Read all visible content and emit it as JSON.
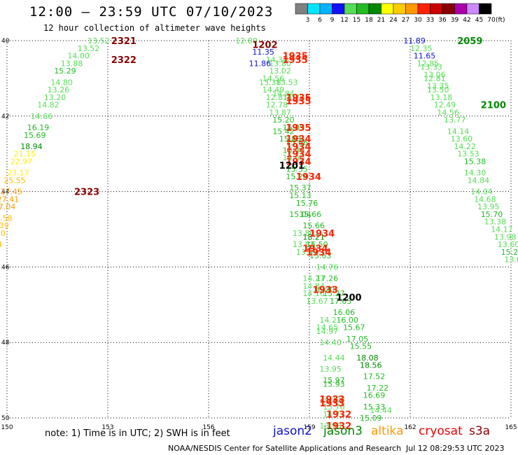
{
  "header": {
    "title": "12:00 – 23:59 UTC 07/10/2023",
    "subtitle": "12 hour collection of altimeter wave heights"
  },
  "colorbar": {
    "unit": "(ft)",
    "labels": [
      "3",
      "6",
      "9",
      "12",
      "15",
      "18",
      "21",
      "24",
      "27",
      "30",
      "33",
      "36",
      "39",
      "42",
      "45",
      "70"
    ],
    "colors": [
      "#808080",
      "#00e5ff",
      "#00b4ff",
      "#1010ff",
      "#55dd55",
      "#22bb22",
      "#008800",
      "#ffff00",
      "#ffcc00",
      "#ff9900",
      "#ff2200",
      "#cc0000",
      "#880000",
      "#aa00aa",
      "#cc88ff",
      "#000000"
    ]
  },
  "chart_data": {
    "type": "scatter",
    "xaxis": {
      "ticks": [
        150,
        153,
        156,
        159,
        162,
        165
      ],
      "range": [
        150,
        165
      ]
    },
    "yaxis": {
      "ticks": [
        40,
        42,
        44,
        46,
        48,
        50
      ],
      "range": [
        40,
        50
      ],
      "label_suffix": ""
    },
    "series": [
      {
        "pass": "2321",
        "points": [
          [
            152.4,
            40.0,
            13.52
          ],
          [
            152.1,
            40.2,
            13.52
          ],
          [
            151.8,
            40.4,
            14.0
          ],
          [
            151.6,
            40.6,
            13.88
          ],
          [
            151.4,
            40.8,
            15.29
          ],
          [
            151.3,
            41.1,
            14.8
          ],
          [
            151.2,
            41.3,
            13.26
          ],
          [
            151.1,
            41.5,
            13.2
          ],
          [
            150.9,
            41.7,
            14.82
          ],
          [
            150.7,
            42.0,
            14.66
          ],
          [
            150.6,
            42.3,
            16.19
          ],
          [
            150.5,
            42.5,
            15.69
          ],
          [
            150.4,
            42.8,
            18.94
          ],
          [
            150.2,
            43.0,
            21.15
          ],
          [
            150.1,
            43.2,
            22.97
          ],
          [
            150.0,
            43.5,
            23.17
          ],
          [
            149.9,
            43.7,
            25.55
          ],
          [
            149.8,
            44.0,
            27.45
          ],
          [
            149.7,
            44.2,
            27.41
          ],
          [
            149.6,
            44.4,
            27.04
          ],
          [
            149.5,
            44.7,
            25.58
          ],
          [
            149.4,
            44.9,
            26.39
          ],
          [
            149.3,
            45.1,
            25.1
          ],
          [
            149.2,
            45.4,
            24.24
          ],
          [
            149.1,
            45.6,
            24.57
          ],
          [
            149.0,
            45.8,
            23.03
          ],
          [
            148.9,
            46.0,
            21.96
          ],
          [
            148.8,
            46.3,
            21.34
          ]
        ]
      },
      {
        "pass": "1202",
        "points": [
          [
            156.8,
            40.0,
            12.8
          ],
          [
            157.3,
            40.3,
            11.35
          ],
          [
            157.7,
            40.5,
            14.34
          ],
          [
            157.8,
            40.6,
            13.8
          ],
          [
            157.2,
            40.6,
            11.86
          ],
          [
            157.8,
            40.8,
            13.02
          ],
          [
            157.6,
            41.0,
            14.56
          ],
          [
            157.5,
            41.1,
            13.38
          ],
          [
            158.0,
            41.1,
            13.53
          ],
          [
            157.6,
            41.3,
            14.49
          ],
          [
            157.9,
            41.4,
            14.84
          ],
          [
            157.7,
            41.5,
            12.81
          ],
          [
            158.2,
            41.5,
            14.72
          ],
          [
            157.7,
            41.7,
            12.78
          ],
          [
            157.8,
            41.9,
            13.87
          ],
          [
            157.9,
            42.1,
            15.2
          ],
          [
            158.2,
            42.3,
            15.09
          ],
          [
            157.9,
            42.4,
            15.42
          ],
          [
            158.1,
            42.6,
            15.88
          ],
          [
            158.3,
            42.7,
            15.66
          ],
          [
            158.2,
            42.9,
            15.4
          ],
          [
            158.2,
            43.1,
            14.6
          ],
          [
            158.3,
            43.4,
            15.35
          ],
          [
            158.3,
            43.6,
            15.24
          ],
          [
            158.4,
            43.9,
            15.37
          ],
          [
            158.4,
            44.1,
            15.13
          ],
          [
            158.6,
            44.3,
            15.76
          ],
          [
            158.4,
            44.6,
            15.04
          ],
          [
            158.7,
            44.6,
            15.66
          ],
          [
            158.8,
            44.9,
            15.66
          ],
          [
            158.5,
            45.1,
            13.8
          ],
          [
            158.8,
            45.2,
            18.21
          ],
          [
            158.5,
            45.4,
            13.53
          ],
          [
            158.9,
            45.4,
            15.5
          ],
          [
            158.6,
            45.6,
            13.97
          ],
          [
            159.0,
            45.7,
            15.63
          ],
          [
            159.2,
            46.0,
            14.76
          ],
          [
            158.8,
            46.3,
            14.27
          ],
          [
            159.2,
            46.3,
            17.26
          ],
          [
            158.8,
            46.5,
            14.84
          ],
          [
            159.1,
            46.6,
            16.2
          ],
          [
            158.8,
            46.7,
            14.16
          ],
          [
            159.4,
            46.7,
            15.27
          ],
          [
            158.9,
            46.9,
            13.67
          ],
          [
            159.6,
            46.9,
            17.63
          ],
          [
            159.7,
            47.2,
            16.06
          ],
          [
            159.8,
            47.4,
            16.0
          ],
          [
            160.0,
            47.6,
            15.67
          ],
          [
            159.3,
            47.4,
            14.21
          ],
          [
            159.2,
            47.6,
            14.65
          ],
          [
            159.2,
            47.7,
            14.97
          ],
          [
            160.1,
            47.9,
            17.05
          ],
          [
            159.3,
            48.0,
            14.4
          ],
          [
            160.2,
            48.1,
            15.55
          ],
          [
            160.4,
            48.4,
            18.08
          ],
          [
            159.4,
            48.4,
            14.44
          ],
          [
            160.5,
            48.6,
            18.56
          ],
          [
            159.3,
            48.7,
            13.95
          ],
          [
            160.6,
            48.9,
            17.52
          ],
          [
            159.4,
            49.0,
            15.97
          ],
          [
            159.4,
            49.1,
            15.93
          ],
          [
            160.7,
            49.2,
            17.22
          ],
          [
            160.6,
            49.4,
            16.69
          ],
          [
            159.3,
            49.5,
            14.11
          ],
          [
            159.4,
            49.7,
            13.7
          ],
          [
            160.6,
            49.7,
            15.33
          ],
          [
            160.8,
            49.8,
            14.44
          ],
          [
            159.4,
            49.9,
            14.77
          ],
          [
            160.5,
            50.0,
            15.09
          ],
          [
            159.3,
            50.2,
            13.93
          ]
        ]
      },
      {
        "pass": "2059",
        "points": [
          [
            161.8,
            40.0,
            11.89
          ],
          [
            162.0,
            40.2,
            12.35
          ],
          [
            162.1,
            40.4,
            11.65
          ],
          [
            162.2,
            40.6,
            12.85
          ],
          [
            162.3,
            40.7,
            13.33
          ],
          [
            162.4,
            40.9,
            13.06
          ],
          [
            162.4,
            41.0,
            12.81
          ],
          [
            162.5,
            41.2,
            13.35
          ],
          [
            162.5,
            41.3,
            13.5
          ],
          [
            162.6,
            41.5,
            13.18
          ],
          [
            162.7,
            41.7,
            12.49
          ],
          [
            162.8,
            41.9,
            14.56
          ],
          [
            163.0,
            42.1,
            13.77
          ],
          [
            163.1,
            42.4,
            14.14
          ],
          [
            163.2,
            42.6,
            13.6
          ],
          [
            163.3,
            42.8,
            14.22
          ],
          [
            163.4,
            43.0,
            13.53
          ],
          [
            163.6,
            43.2,
            15.38
          ],
          [
            163.6,
            43.5,
            14.3
          ],
          [
            163.7,
            43.7,
            14.84
          ],
          [
            163.8,
            44.0,
            14.04
          ],
          [
            163.9,
            44.2,
            14.68
          ],
          [
            164.0,
            44.4,
            13.95
          ],
          [
            164.1,
            44.6,
            15.7
          ],
          [
            164.2,
            44.8,
            13.38
          ],
          [
            164.4,
            45.0,
            14.17
          ],
          [
            164.5,
            45.2,
            13.98
          ],
          [
            164.6,
            45.4,
            13.6
          ],
          [
            164.7,
            45.6,
            15.2
          ],
          [
            164.8,
            45.8,
            13.0
          ]
        ]
      }
    ],
    "time_labels": [
      {
        "text": "2321",
        "lon": 153.1,
        "lat": 40.0,
        "color": "#880000"
      },
      {
        "text": "2322",
        "lon": 153.1,
        "lat": 40.5,
        "color": "#880000"
      },
      {
        "text": "2323",
        "lon": 152.0,
        "lat": 44.0,
        "color": "#880000"
      },
      {
        "text": "1202",
        "lon": 157.3,
        "lat": 40.1,
        "color": "#880000"
      },
      {
        "text": "1935",
        "lon": 158.2,
        "lat": 40.4,
        "color": "#ff2200"
      },
      {
        "text": "1935",
        "lon": 158.2,
        "lat": 40.5,
        "color": "#ff2200"
      },
      {
        "text": "1935",
        "lon": 158.3,
        "lat": 41.5,
        "color": "#ff2200"
      },
      {
        "text": "1935",
        "lon": 158.3,
        "lat": 41.6,
        "color": "#ff2200"
      },
      {
        "text": "1935",
        "lon": 158.3,
        "lat": 42.3,
        "color": "#ff2200"
      },
      {
        "text": "1934",
        "lon": 158.3,
        "lat": 42.6,
        "color": "#ff2200"
      },
      {
        "text": "1934",
        "lon": 158.3,
        "lat": 42.8,
        "color": "#ff2200"
      },
      {
        "text": "1934",
        "lon": 158.3,
        "lat": 43.0,
        "color": "#ff2200"
      },
      {
        "text": "1934",
        "lon": 158.3,
        "lat": 43.2,
        "color": "#ff2200"
      },
      {
        "text": "1201",
        "lon": 158.1,
        "lat": 43.3,
        "color": "#000000"
      },
      {
        "text": "1934",
        "lon": 158.6,
        "lat": 43.6,
        "color": "#ff2200"
      },
      {
        "text": "1934",
        "lon": 159.0,
        "lat": 45.1,
        "color": "#ff2200"
      },
      {
        "text": "1934",
        "lon": 158.8,
        "lat": 45.5,
        "color": "#ff2200"
      },
      {
        "text": "1934",
        "lon": 158.9,
        "lat": 45.6,
        "color": "#ff2200"
      },
      {
        "text": "1933",
        "lon": 159.1,
        "lat": 46.6,
        "color": "#ff2200"
      },
      {
        "text": "1200",
        "lon": 159.8,
        "lat": 46.8,
        "color": "#000000"
      },
      {
        "text": "1933",
        "lon": 159.3,
        "lat": 49.5,
        "color": "#ff2200"
      },
      {
        "text": "1933",
        "lon": 159.3,
        "lat": 49.6,
        "color": "#ff2200"
      },
      {
        "text": "1932",
        "lon": 159.5,
        "lat": 49.9,
        "color": "#ff2200"
      },
      {
        "text": "1932",
        "lon": 159.5,
        "lat": 50.2,
        "color": "#ff2200"
      },
      {
        "text": "2059",
        "lon": 163.4,
        "lat": 40.0,
        "color": "#008800"
      },
      {
        "text": "2100",
        "lon": 164.1,
        "lat": 41.7,
        "color": "#008800"
      },
      {
        "text": "2",
        "lon": 166.9,
        "lat": 44.4,
        "color": "#008800"
      }
    ]
  },
  "footer": {
    "note": "note:  1) Time is in UTC;  2) SWH is in feet",
    "satellites": [
      {
        "name": "jason2",
        "color": "#1010cc"
      },
      {
        "name": "jason3",
        "color": "#008800"
      },
      {
        "name": "altika",
        "color": "#ff9900"
      },
      {
        "name": "cryosat",
        "color": "#ee0000"
      },
      {
        "name": "s3a",
        "color": "#880000"
      }
    ],
    "credit": "NOAA/NESDIS Center for Satellite Applications and Research",
    "timestamp": "Jul 12 08:29:53 UTC 2023"
  }
}
